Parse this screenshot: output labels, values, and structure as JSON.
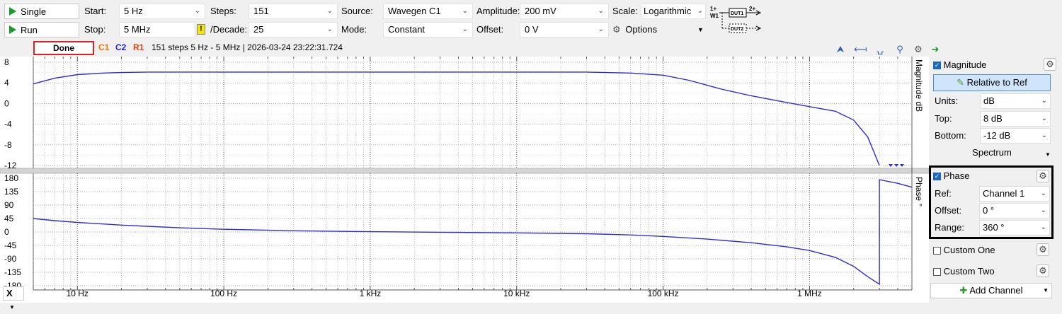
{
  "toolbar": {
    "single_label": "Single",
    "run_label": "Run",
    "start_label": "Start:",
    "start_value": "5 Hz",
    "stop_label": "Stop:",
    "stop_value": "5 MHz",
    "steps_label": "Steps:",
    "steps_value": "151",
    "decade_label": "/Decade:",
    "decade_value": "25",
    "source_label": "Source:",
    "source_value": "Wavegen C1",
    "mode_label": "Mode:",
    "mode_value": "Constant",
    "amplitude_label": "Amplitude:",
    "amplitude_value": "200 mV",
    "offset_label": "Offset:",
    "offset_value": "0 V",
    "scale_label": "Scale:",
    "scale_value": "Logarithmic",
    "options_label": "Options",
    "warning_glyph": "!",
    "dut1_label": "DUT1",
    "dut2_label": "DUT2",
    "w1_label": "1+\nW1",
    "ch2_label": "2+"
  },
  "status": {
    "done_label": "Done",
    "c1": "C1",
    "c2": "C2",
    "r1": "R1",
    "info": "151 steps  5 Hz - 5 MHz | 2026-03-24 23:22:31.724"
  },
  "colors": {
    "c1": "#f07800",
    "c2": "#2020e0",
    "r1": "#e04010",
    "trace": "#2b2bdc",
    "accent": "#1a66c0"
  },
  "magnitude_axis": {
    "title": "Magnitude dB",
    "ticks": [
      "8",
      "4",
      "0",
      "-4",
      "-8",
      "-12"
    ]
  },
  "phase_axis": {
    "title": "Phase °",
    "ticks": [
      "180",
      "135",
      "90",
      "45",
      "0",
      "-45",
      "-90",
      "-135",
      "-180"
    ]
  },
  "freq_axis": {
    "ticks": [
      "10 Hz",
      "100 Hz",
      "1 kHz",
      "10 kHz",
      "100 kHz",
      "1 MHz"
    ],
    "x_button": "X"
  },
  "chart_data": [
    {
      "type": "line",
      "title": "",
      "ylabel": "Magnitude dB",
      "xscale": "log",
      "xlim": [
        5,
        5000000
      ],
      "ylim": [
        -12,
        8
      ],
      "series": [
        {
          "name": "",
          "x": [
            5,
            7,
            10,
            15,
            20,
            30,
            50,
            100,
            500,
            1000,
            5000,
            10000,
            30000,
            60000,
            100000,
            150000,
            250000,
            400000,
            700000,
            1000000,
            1500000,
            2000000,
            2500000,
            3000000
          ],
          "values": [
            3.8,
            4.9,
            5.6,
            5.9,
            6.0,
            6.1,
            6.1,
            6.1,
            6.1,
            6.1,
            6.1,
            6.1,
            6.1,
            5.9,
            5.5,
            4.5,
            2.8,
            1.5,
            0.2,
            -0.6,
            -1.5,
            -3.2,
            -6.5,
            -12
          ]
        }
      ]
    },
    {
      "type": "line",
      "title": "",
      "ylabel": "Phase °",
      "xscale": "log",
      "xlim": [
        5,
        5000000
      ],
      "ylim": [
        -180,
        180
      ],
      "series": [
        {
          "name": "",
          "x": [
            5,
            7,
            10,
            20,
            30,
            50,
            100,
            300,
            1000,
            3000,
            10000,
            30000,
            60000,
            100000,
            200000,
            400000,
            700000,
            1000000,
            1500000,
            2000000,
            2500000,
            3000000,
            3000001,
            4000000,
            5000000
          ],
          "values": [
            45,
            38,
            32,
            23,
            19,
            14,
            9,
            4,
            1,
            -1,
            -3,
            -6,
            -10,
            -15,
            -24,
            -36,
            -50,
            -62,
            -85,
            -115,
            -150,
            -175,
            175,
            163,
            150
          ]
        }
      ]
    }
  ],
  "panel": {
    "magnitude_label": "Magnitude",
    "relative_btn": "Relative to Ref",
    "units_label": "Units:",
    "units_value": "dB",
    "top_label": "Top:",
    "top_value": "8 dB",
    "bottom_label": "Bottom:",
    "bottom_value": "-12 dB",
    "spectrum_label": "Spectrum",
    "phase_label": "Phase",
    "ref_label": "Ref:",
    "ref_value": "Channel 1",
    "offset_label": "Offset:",
    "offset_value": "0 °",
    "range_label": "Range:",
    "range_value": "360 °",
    "custom_one_label": "Custom One",
    "custom_two_label": "Custom Two",
    "add_channel_label": "Add Channel"
  }
}
